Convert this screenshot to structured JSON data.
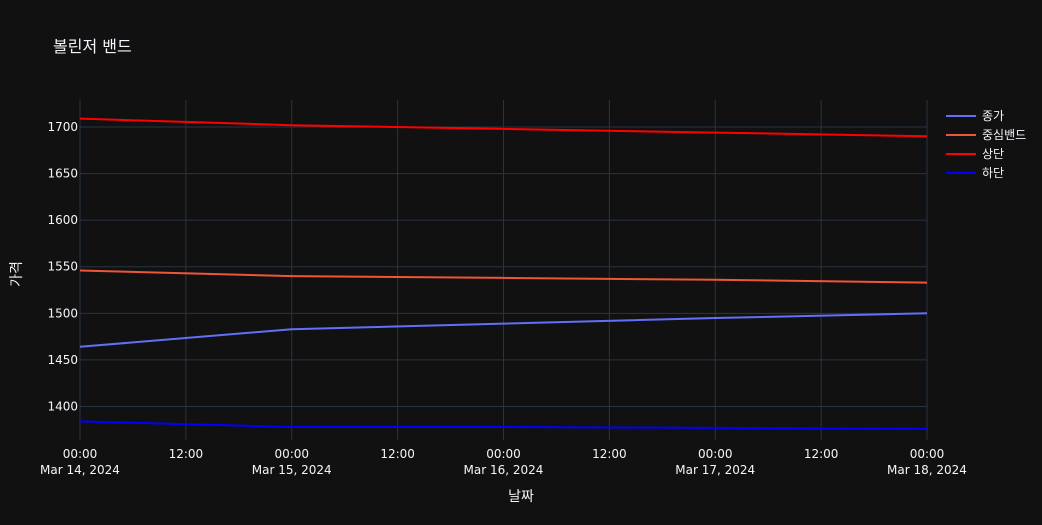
{
  "chart_data": {
    "type": "line",
    "title": "볼린저 밴드",
    "xlabel": "날짜",
    "ylabel": "가격",
    "x": [
      "2024-03-14 00:00",
      "2024-03-15 00:00",
      "2024-03-16 00:00",
      "2024-03-17 00:00",
      "2024-03-18 00:00"
    ],
    "x_ticks": [
      {
        "t": "2024-03-14 00:00",
        "line1": "00:00",
        "line2": "Mar 14, 2024"
      },
      {
        "t": "2024-03-14 12:00",
        "line1": "12:00",
        "line2": ""
      },
      {
        "t": "2024-03-15 00:00",
        "line1": "00:00",
        "line2": "Mar 15, 2024"
      },
      {
        "t": "2024-03-15 12:00",
        "line1": "12:00",
        "line2": ""
      },
      {
        "t": "2024-03-16 00:00",
        "line1": "00:00",
        "line2": "Mar 16, 2024"
      },
      {
        "t": "2024-03-16 12:00",
        "line1": "12:00",
        "line2": ""
      },
      {
        "t": "2024-03-17 00:00",
        "line1": "00:00",
        "line2": "Mar 17, 2024"
      },
      {
        "t": "2024-03-17 12:00",
        "line1": "12:00",
        "line2": ""
      },
      {
        "t": "2024-03-18 00:00",
        "line1": "00:00",
        "line2": "Mar 18, 2024"
      }
    ],
    "y_ticks": [
      1400,
      1450,
      1500,
      1550,
      1600,
      1650,
      1700
    ],
    "ylim": [
      1364,
      1729
    ],
    "grid": true,
    "legend_position": "top-right",
    "series": [
      {
        "name": "종가",
        "color": "#636efa",
        "values": [
          1464,
          1483,
          1489,
          1495,
          1500
        ]
      },
      {
        "name": "중심밴드",
        "color": "#ef553b",
        "values": [
          1546,
          1540,
          1538,
          1536,
          1533
        ]
      },
      {
        "name": "상단",
        "color": "#ff0000",
        "values": [
          1709,
          1702,
          1698,
          1694,
          1690
        ]
      },
      {
        "name": "하단",
        "color": "#0000ff",
        "values": [
          1384,
          1378,
          1378,
          1377,
          1376
        ]
      }
    ]
  }
}
